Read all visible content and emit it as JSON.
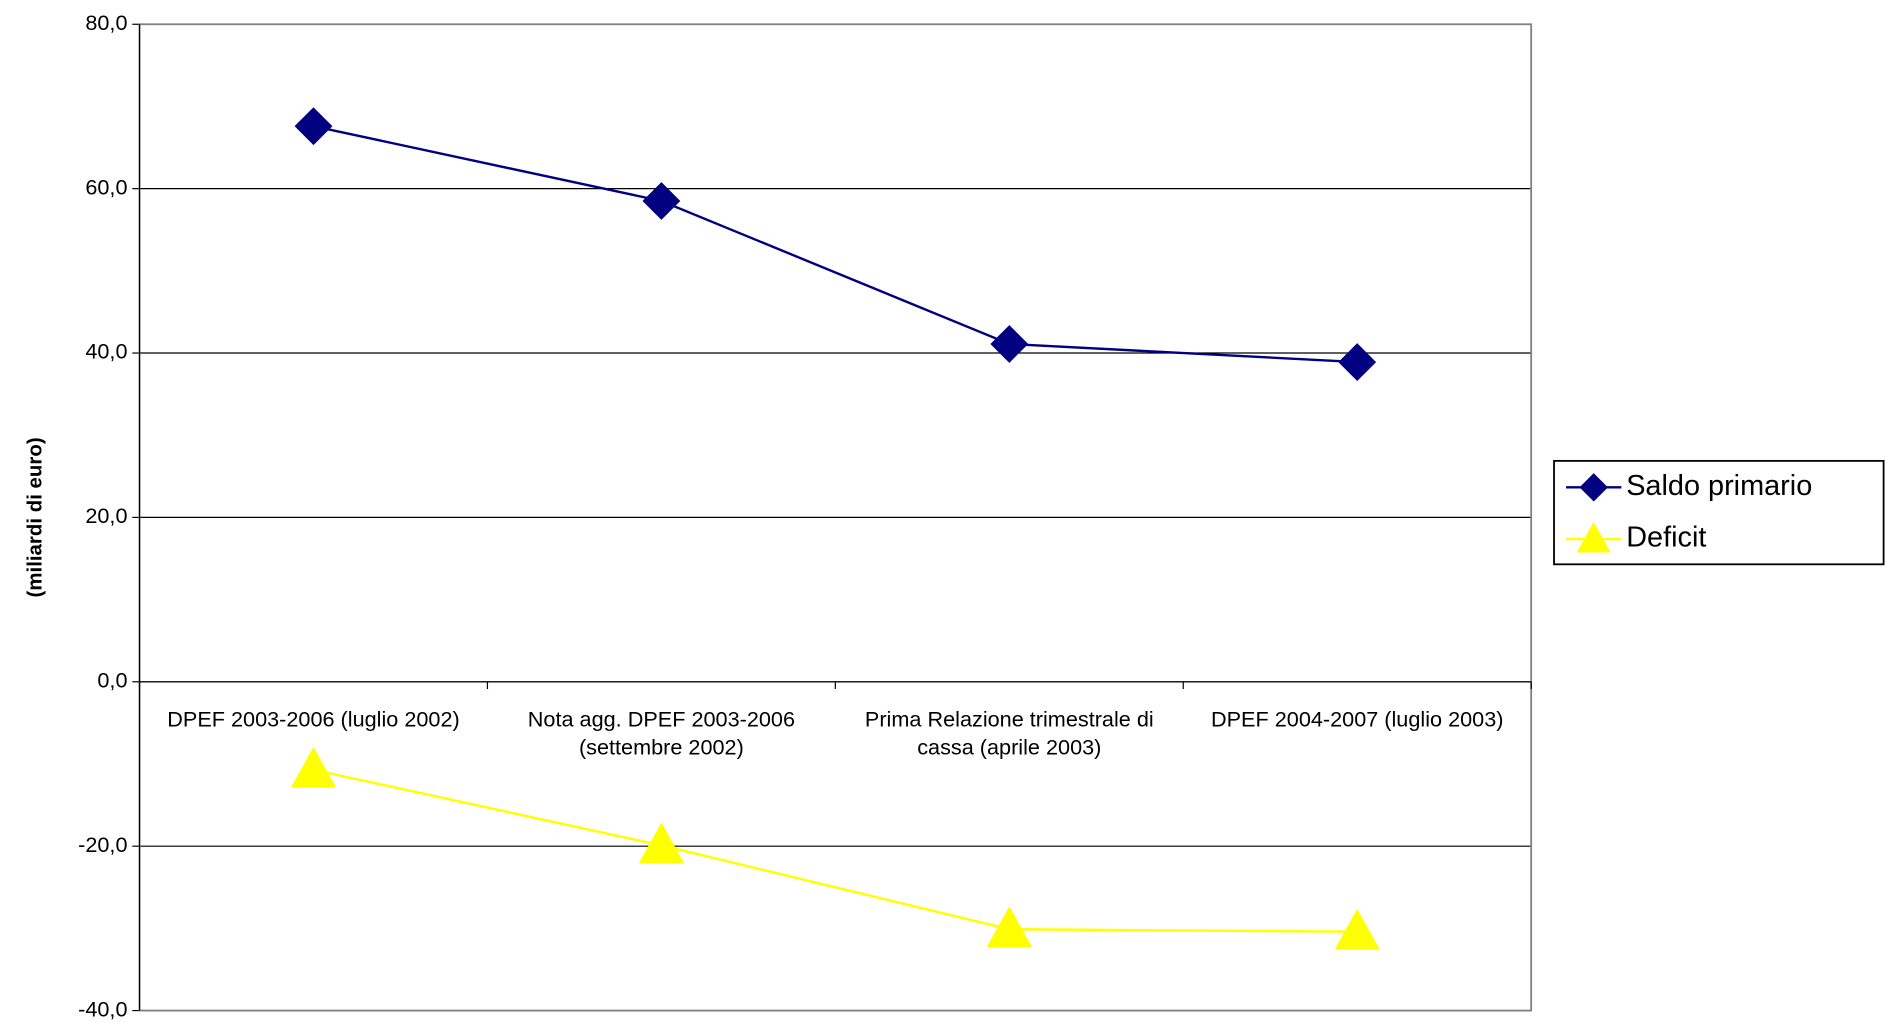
{
  "chart_data": {
    "type": "line",
    "y_label": "(miliardi di euro)",
    "categories": [
      "DPEF 2003-2006 (luglio 2002)",
      "Nota agg. DPEF 2003-2006 (settembre 2002)",
      "Prima Relazione trimestrale di cassa (aprile 2003)",
      "DPEF 2004-2007 (luglio 2003)"
    ],
    "series": [
      {
        "name": "Saldo primario",
        "color": "#000080",
        "marker": "diamond",
        "values": [
          67.6,
          58.5,
          41.1,
          38.9
        ]
      },
      {
        "name": "Deficit",
        "color": "#ffff00",
        "marker": "triangle",
        "values": [
          -10.7,
          -19.9,
          -30.1,
          -30.4
        ]
      }
    ],
    "ylim": [
      -40,
      80
    ],
    "yticks": [
      {
        "value": -40,
        "label": "-40,0"
      },
      {
        "value": -20,
        "label": "-20,0"
      },
      {
        "value": 0,
        "label": "0,0"
      },
      {
        "value": 20,
        "label": "20,0"
      },
      {
        "value": 40,
        "label": "40,0"
      },
      {
        "value": 60,
        "label": "60,0"
      },
      {
        "value": 80,
        "label": "80,0"
      }
    ],
    "grid": true,
    "legend": "right"
  }
}
